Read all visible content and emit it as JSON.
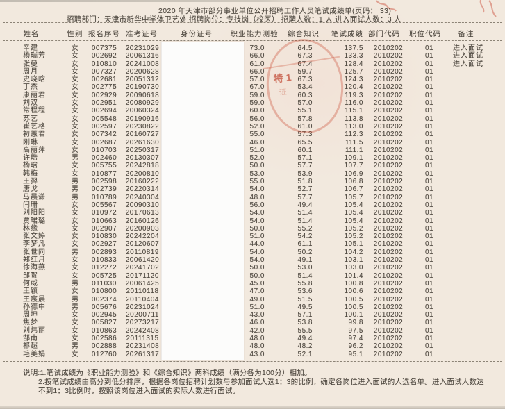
{
  "header": {
    "title": "2020 年天津市部分事业单位公开招聘工作人员笔试成绩单(页码：    33)",
    "subtitle": "招聘部门：天津市新华中学体卫艺处 招聘岗位：专技岗（校医） 招聘人数：1 人 进入面试人数：3 人"
  },
  "table": {
    "headers": [
      "姓名",
      "性别",
      "报名序号",
      "准考证号",
      "身份证号",
      "职业能力测验",
      "综合知识",
      "笔试成绩",
      "部门代码",
      "职位代码",
      "备注"
    ],
    "rows": [
      {
        "name": "辛建",
        "gender": "女",
        "reg_no": "007375",
        "exam_no": "20231029",
        "id_no": "",
        "ability": "73.0",
        "knowledge": "64.5",
        "total": "137.5",
        "dept_code": "2010202",
        "pos_code": "01",
        "remark": "进入面试"
      },
      {
        "name": "杨瑞芳",
        "gender": "女",
        "reg_no": "002692",
        "exam_no": "20061316",
        "id_no": "",
        "ability": "66.0",
        "knowledge": "67.3",
        "total": "133.3",
        "dept_code": "2010202",
        "pos_code": "01",
        "remark": "进入面试"
      },
      {
        "name": "张曼",
        "gender": "女",
        "reg_no": "010810",
        "exam_no": "20241008",
        "id_no": "",
        "ability": "61.0",
        "knowledge": "67.4",
        "total": "128.4",
        "dept_code": "2010202",
        "pos_code": "01",
        "remark": "进入面试"
      },
      {
        "name": "周月",
        "gender": "女",
        "reg_no": "007327",
        "exam_no": "20200628",
        "id_no": "",
        "ability": "66.0",
        "knowledge": "59.7",
        "total": "125.7",
        "dept_code": "2010202",
        "pos_code": "01",
        "remark": ""
      },
      {
        "name": "史晓晗",
        "gender": "女",
        "reg_no": "002681",
        "exam_no": "20051312",
        "id_no": "",
        "ability": "57.0",
        "knowledge": "67.3",
        "total": "124.3",
        "dept_code": "2010202",
        "pos_code": "01",
        "remark": ""
      },
      {
        "name": "丁杰",
        "gender": "女",
        "reg_no": "002775",
        "exam_no": "20190730",
        "id_no": "",
        "ability": "67.0",
        "knowledge": "53.4",
        "total": "120.4",
        "dept_code": "2010202",
        "pos_code": "01",
        "remark": ""
      },
      {
        "name": "康丽君",
        "gender": "女",
        "reg_no": "002929",
        "exam_no": "20090618",
        "id_no": "",
        "ability": "59.0",
        "knowledge": "60.3",
        "total": "119.3",
        "dept_code": "2010202",
        "pos_code": "01",
        "remark": ""
      },
      {
        "name": "刘双",
        "gender": "女",
        "reg_no": "002951",
        "exam_no": "20080929",
        "id_no": "",
        "ability": "59.0",
        "knowledge": "57.0",
        "total": "116.0",
        "dept_code": "2010202",
        "pos_code": "01",
        "remark": ""
      },
      {
        "name": "常程程",
        "gender": "女",
        "reg_no": "002694",
        "exam_no": "20060324",
        "id_no": "",
        "ability": "60.0",
        "knowledge": "55.1",
        "total": "115.1",
        "dept_code": "2010202",
        "pos_code": "01",
        "remark": ""
      },
      {
        "name": "苏艺",
        "gender": "女",
        "reg_no": "005548",
        "exam_no": "20190916",
        "id_no": "",
        "ability": "56.0",
        "knowledge": "57.8",
        "total": "113.8",
        "dept_code": "2010202",
        "pos_code": "01",
        "remark": ""
      },
      {
        "name": "崔艺格",
        "gender": "女",
        "reg_no": "002597",
        "exam_no": "20230822",
        "id_no": "",
        "ability": "52.0",
        "knowledge": "61.0",
        "total": "113.0",
        "dept_code": "2010202",
        "pos_code": "01",
        "remark": ""
      },
      {
        "name": "初蕙君",
        "gender": "女",
        "reg_no": "007342",
        "exam_no": "20160727",
        "id_no": "",
        "ability": "55.0",
        "knowledge": "57.3",
        "total": "112.3",
        "dept_code": "2010202",
        "pos_code": "01",
        "remark": ""
      },
      {
        "name": "刚琳",
        "gender": "女",
        "reg_no": "002687",
        "exam_no": "20261630",
        "id_no": "",
        "ability": "46.0",
        "knowledge": "65.5",
        "total": "111.5",
        "dept_code": "2010202",
        "pos_code": "01",
        "remark": ""
      },
      {
        "name": "高丽萍",
        "gender": "女",
        "reg_no": "010703",
        "exam_no": "20250317",
        "id_no": "",
        "ability": "51.0",
        "knowledge": "60.1",
        "total": "111.1",
        "dept_code": "2010202",
        "pos_code": "01",
        "remark": ""
      },
      {
        "name": "许皓",
        "gender": "男",
        "reg_no": "002460",
        "exam_no": "20130307",
        "id_no": "",
        "ability": "52.0",
        "knowledge": "57.1",
        "total": "109.1",
        "dept_code": "2010202",
        "pos_code": "01",
        "remark": ""
      },
      {
        "name": "杨晗",
        "gender": "女",
        "reg_no": "005755",
        "exam_no": "20242818",
        "id_no": "",
        "ability": "50.0",
        "knowledge": "57.7",
        "total": "107.7",
        "dept_code": "2010202",
        "pos_code": "01",
        "remark": ""
      },
      {
        "name": "韩梅",
        "gender": "女",
        "reg_no": "010877",
        "exam_no": "20200810",
        "id_no": "",
        "ability": "53.0",
        "knowledge": "53.9",
        "total": "106.9",
        "dept_code": "2010202",
        "pos_code": "01",
        "remark": ""
      },
      {
        "name": "王羿",
        "gender": "男",
        "reg_no": "002598",
        "exam_no": "20160222",
        "id_no": "",
        "ability": "55.0",
        "knowledge": "51.8",
        "total": "106.8",
        "dept_code": "2010202",
        "pos_code": "01",
        "remark": ""
      },
      {
        "name": "唐戈",
        "gender": "男",
        "reg_no": "002739",
        "exam_no": "20220314",
        "id_no": "",
        "ability": "54.0",
        "knowledge": "52.7",
        "total": "106.7",
        "dept_code": "2010202",
        "pos_code": "01",
        "remark": ""
      },
      {
        "name": "马晨潇",
        "gender": "男",
        "reg_no": "010789",
        "exam_no": "20240304",
        "id_no": "",
        "ability": "48.0",
        "knowledge": "57.7",
        "total": "105.7",
        "dept_code": "2010202",
        "pos_code": "01",
        "remark": ""
      },
      {
        "name": "闫珊",
        "gender": "女",
        "reg_no": "005567",
        "exam_no": "20090310",
        "id_no": "",
        "ability": "56.0",
        "knowledge": "49.4",
        "total": "105.4",
        "dept_code": "2010202",
        "pos_code": "01",
        "remark": ""
      },
      {
        "name": "刘阳阳",
        "gender": "女",
        "reg_no": "010972",
        "exam_no": "20170613",
        "id_no": "",
        "ability": "54.0",
        "knowledge": "51.4",
        "total": "105.4",
        "dept_code": "2010202",
        "pos_code": "01",
        "remark": ""
      },
      {
        "name": "贾珺璐",
        "gender": "女",
        "reg_no": "010663",
        "exam_no": "20160126",
        "id_no": "",
        "ability": "54.0",
        "knowledge": "51.4",
        "total": "105.4",
        "dept_code": "2010202",
        "pos_code": "01",
        "remark": ""
      },
      {
        "name": "林缘",
        "gender": "女",
        "reg_no": "002907",
        "exam_no": "20200903",
        "id_no": "",
        "ability": "50.0",
        "knowledge": "55.2",
        "total": "105.2",
        "dept_code": "2010202",
        "pos_code": "01",
        "remark": ""
      },
      {
        "name": "张文婷",
        "gender": "女",
        "reg_no": "010830",
        "exam_no": "20242204",
        "id_no": "",
        "ability": "51.0",
        "knowledge": "54.2",
        "total": "105.2",
        "dept_code": "2010202",
        "pos_code": "01",
        "remark": ""
      },
      {
        "name": "李梦凡",
        "gender": "女",
        "reg_no": "002927",
        "exam_no": "20120607",
        "id_no": "",
        "ability": "44.0",
        "knowledge": "61.1",
        "total": "105.1",
        "dept_code": "2010202",
        "pos_code": "01",
        "remark": ""
      },
      {
        "name": "张世同",
        "gender": "男",
        "reg_no": "002893",
        "exam_no": "20110819",
        "id_no": "",
        "ability": "54.0",
        "knowledge": "50.2",
        "total": "104.2",
        "dept_code": "2010202",
        "pos_code": "01",
        "remark": ""
      },
      {
        "name": "郑红月",
        "gender": "女",
        "reg_no": "010833",
        "exam_no": "20061420",
        "id_no": "",
        "ability": "54.0",
        "knowledge": "49.1",
        "total": "103.1",
        "dept_code": "2010202",
        "pos_code": "01",
        "remark": ""
      },
      {
        "name": "徐海燕",
        "gender": "女",
        "reg_no": "012272",
        "exam_no": "20241702",
        "id_no": "",
        "ability": "50.0",
        "knowledge": "53.0",
        "total": "103.0",
        "dept_code": "2010202",
        "pos_code": "01",
        "remark": ""
      },
      {
        "name": "邹贺",
        "gender": "女",
        "reg_no": "005725",
        "exam_no": "20171120",
        "id_no": "",
        "ability": "50.0",
        "knowledge": "51.4",
        "total": "101.4",
        "dept_code": "2010202",
        "pos_code": "01",
        "remark": ""
      },
      {
        "name": "何威",
        "gender": "男",
        "reg_no": "011030",
        "exam_no": "20061425",
        "id_no": "",
        "ability": "45.0",
        "knowledge": "55.8",
        "total": "100.8",
        "dept_code": "2010202",
        "pos_code": "01",
        "remark": ""
      },
      {
        "name": "王颖",
        "gender": "女",
        "reg_no": "010800",
        "exam_no": "20110118",
        "id_no": "",
        "ability": "47.0",
        "knowledge": "53.6",
        "total": "100.6",
        "dept_code": "2010202",
        "pos_code": "01",
        "remark": ""
      },
      {
        "name": "王宸晨",
        "gender": "男",
        "reg_no": "002374",
        "exam_no": "20110404",
        "id_no": "",
        "ability": "49.0",
        "knowledge": "51.5",
        "total": "100.5",
        "dept_code": "2010202",
        "pos_code": "01",
        "remark": ""
      },
      {
        "name": "孙德中",
        "gender": "男",
        "reg_no": "005676",
        "exam_no": "20231024",
        "id_no": "",
        "ability": "51.0",
        "knowledge": "49.5",
        "total": "100.5",
        "dept_code": "2010202",
        "pos_code": "01",
        "remark": ""
      },
      {
        "name": "周坤",
        "gender": "女",
        "reg_no": "002945",
        "exam_no": "20200711",
        "id_no": "",
        "ability": "43.0",
        "knowledge": "57.1",
        "total": "100.1",
        "dept_code": "2010202",
        "pos_code": "01",
        "remark": ""
      },
      {
        "name": "焦梦",
        "gender": "女",
        "reg_no": "005827",
        "exam_no": "20273217",
        "id_no": "",
        "ability": "46.0",
        "knowledge": "53.8",
        "total": "99.8",
        "dept_code": "2010202",
        "pos_code": "01",
        "remark": ""
      },
      {
        "name": "刘炜丽",
        "gender": "女",
        "reg_no": "010863",
        "exam_no": "20242408",
        "id_no": "",
        "ability": "42.0",
        "knowledge": "55.5",
        "total": "97.5",
        "dept_code": "2010202",
        "pos_code": "01",
        "remark": ""
      },
      {
        "name": "郜南",
        "gender": "女",
        "reg_no": "002586",
        "exam_no": "20111315",
        "id_no": "",
        "ability": "48.0",
        "knowledge": "49.4",
        "total": "97.4",
        "dept_code": "2010202",
        "pos_code": "01",
        "remark": ""
      },
      {
        "name": "祁超",
        "gender": "男",
        "reg_no": "002888",
        "exam_no": "20231408",
        "id_no": "",
        "ability": "48.0",
        "knowledge": "48.2",
        "total": "96.2",
        "dept_code": "2010202",
        "pos_code": "01",
        "remark": ""
      },
      {
        "name": "毛美娟",
        "gender": "女",
        "reg_no": "012760",
        "exam_no": "20261317",
        "id_no": "",
        "ability": "43.0",
        "knowledge": "52.1",
        "total": "95.1",
        "dept_code": "2010202",
        "pos_code": "01",
        "remark": ""
      }
    ]
  },
  "notes": [
    "说明:1.笔试成绩为《职业能力测验》和《综合知识》两科成绩（满分各为100分）相加。",
    "2.按笔试成绩由高分到低分排序，根据各岗位招聘计划数与参加面试人选1：3的比例，确定各岗位进入面试的人选名单。进入面试人数达",
    "不到1：3比例时，按照该岗位进入面试的实际人数进行面试。"
  ],
  "stamp": {
    "text": "特1",
    "text2": "证"
  },
  "colors": {
    "paper": "#f2e9de",
    "ink": "#4f4941",
    "seal_red": "#cb4932",
    "redaction": "#fcfcfb"
  }
}
